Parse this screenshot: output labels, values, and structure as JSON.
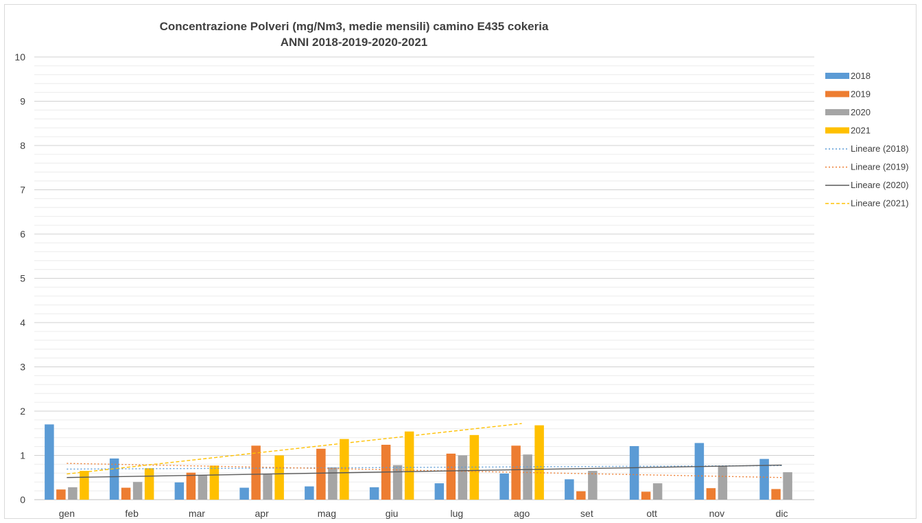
{
  "chart_data": {
    "type": "bar",
    "title": "Concentrazione Polveri (mg/Nm3, medie mensili) camino E435 cokeria",
    "subtitle": "ANNI 2018-2019-2020-2021",
    "xlabel": "",
    "ylabel": "",
    "ylim": [
      0,
      10
    ],
    "y_ticks": [
      0,
      1,
      2,
      3,
      4,
      5,
      6,
      7,
      8,
      9,
      10
    ],
    "minor_gridlines": true,
    "legend_position": "right",
    "categories": [
      "gen",
      "feb",
      "mar",
      "apr",
      "mag",
      "giu",
      "lug",
      "ago",
      "set",
      "ott",
      "nov",
      "dic"
    ],
    "series": [
      {
        "name": "2018",
        "color": "#5b9bd5",
        "values": [
          1.7,
          0.93,
          0.39,
          0.27,
          0.3,
          0.28,
          0.37,
          0.59,
          0.46,
          1.21,
          1.28,
          0.92
        ]
      },
      {
        "name": "2019",
        "color": "#ed7d31",
        "values": [
          0.23,
          0.27,
          0.61,
          1.22,
          1.15,
          1.24,
          1.04,
          1.22,
          0.19,
          0.18,
          0.26,
          0.24
        ]
      },
      {
        "name": "2020",
        "color": "#a5a5a5",
        "values": [
          0.28,
          0.4,
          0.55,
          0.57,
          0.73,
          0.78,
          1.0,
          1.02,
          0.65,
          0.37,
          0.76,
          0.62
        ]
      },
      {
        "name": "2021",
        "color": "#ffc000",
        "values": [
          0.65,
          0.71,
          0.77,
          1.0,
          1.37,
          1.54,
          1.46,
          1.68,
          null,
          null,
          null,
          null
        ]
      }
    ],
    "trendlines": [
      {
        "name": "Lineare (2018)",
        "color": "#5b9bd5",
        "style": "dotted",
        "start": 0.69,
        "end": 0.77,
        "from": "gen",
        "to": "dic"
      },
      {
        "name": "Lineare (2019)",
        "color": "#ed7d31",
        "style": "dotted",
        "start": 0.82,
        "end": 0.5,
        "from": "gen",
        "to": "dic"
      },
      {
        "name": "Lineare (2020)",
        "color": "#595959",
        "style": "solid",
        "start": 0.5,
        "end": 0.78,
        "from": "gen",
        "to": "dic"
      },
      {
        "name": "Lineare (2021)",
        "color": "#ffc000",
        "style": "dashed",
        "start": 0.58,
        "end": 1.72,
        "from": "gen",
        "to": "ago"
      }
    ]
  }
}
